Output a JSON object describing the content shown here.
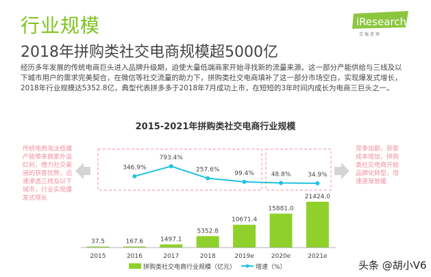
{
  "header": {
    "title": "行业规模",
    "subtitle": "2018年拼购类社交电商规模超5000亿"
  },
  "paragraph": [
    "经历多年发展的传统电商巨头进入品牌升级期，迫使大量低端商家开始寻找新的流量来源。这一部分产能供给与三线及以",
    "下城市用户的需求完美契合，在微信等社交流量的助力下，拼购类社交电商填补了这一部分市场空白，实现爆发式增长，",
    "2018年行业规模达5352.8亿，典型代表拼多多于2018年7月成功上市，在短短的3年时间内成长为电商三巨头之一。"
  ],
  "logo": {
    "text": "iResearch",
    "subtext": "艾 瑞 咨 询",
    "color": "#8cc63f"
  },
  "notes": {
    "left": "传统电商淘汰低端产能带来商家外溢红利，借力社交渠道的获客优势，迅速渗透三线及以下城市，行业实现爆发式增长",
    "right": "竞争加剧，获客成本增加，拼购类社交电商开始品牌化转型，增速逐渐放缓"
  },
  "watermark": "头条 @胡小V6",
  "chart_data": {
    "type": "bar",
    "title": "2015-2021年拼购类社交电商行业规模",
    "categories": [
      "2015",
      "2016",
      "2017",
      "2018",
      "2019e",
      "2020e",
      "2021e"
    ],
    "series": [
      {
        "name": "拼购类社交电商行业规模（亿元）",
        "type": "bar",
        "color": "#8fd12a",
        "values": [
          37.5,
          167.6,
          1497.1,
          5352.8,
          10671.4,
          15881.0,
          21424.0
        ],
        "labels": [
          "37.5",
          "167.6",
          "1497.1",
          "5352.8",
          "10671.4",
          "15881.0",
          "21424.0"
        ]
      },
      {
        "name": "增速（%）",
        "type": "line",
        "color": "#1fc2e0",
        "values": [
          null,
          346.9,
          793.4,
          257.6,
          99.4,
          48.8,
          34.9
        ],
        "labels": [
          "",
          "346.9%",
          "793.4%",
          "257.6%",
          "99.4%",
          "48.8%",
          "34.9%"
        ]
      }
    ],
    "legend": "bottom",
    "grid": false,
    "highlight_color": "#f28ca0"
  }
}
